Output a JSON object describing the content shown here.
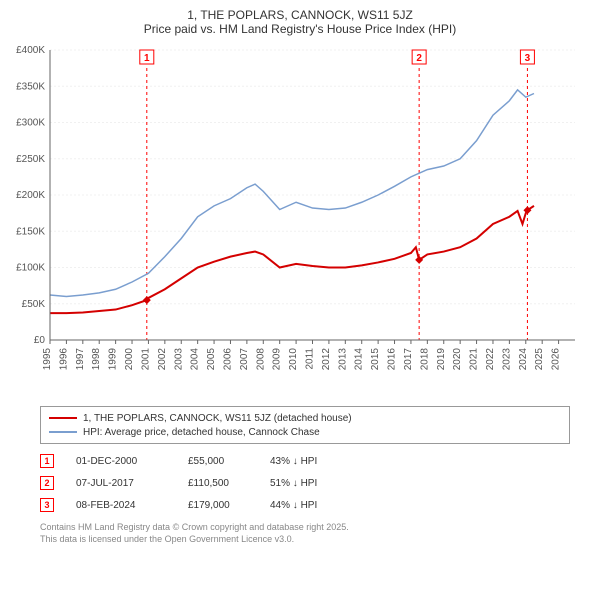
{
  "title": {
    "line1": "1, THE POPLARS, CANNOCK, WS11 5JZ",
    "line2": "Price paid vs. HM Land Registry's House Price Index (HPI)"
  },
  "chart": {
    "type": "line",
    "background_color": "#ffffff",
    "grid_color": "#f0f0f0",
    "axis_color": "#666666",
    "label_color": "#555555",
    "label_fontsize": 10,
    "x": {
      "min": 1995,
      "max": 2027,
      "ticks": [
        1995,
        1996,
        1997,
        1998,
        1999,
        2000,
        2001,
        2002,
        2003,
        2004,
        2005,
        2006,
        2007,
        2008,
        2009,
        2010,
        2011,
        2012,
        2013,
        2014,
        2015,
        2016,
        2017,
        2018,
        2019,
        2020,
        2021,
        2022,
        2023,
        2024,
        2025,
        2026
      ]
    },
    "y": {
      "min": 0,
      "max": 400000,
      "tick_step": 50000,
      "tick_labels": [
        "£0",
        "£50K",
        "£100K",
        "£150K",
        "£200K",
        "£250K",
        "£300K",
        "£350K",
        "£400K"
      ],
      "tick_values": [
        0,
        50000,
        100000,
        150000,
        200000,
        250000,
        300000,
        350000,
        400000
      ]
    },
    "series": [
      {
        "name": "property",
        "color": "#d40000",
        "width": 2,
        "points": [
          [
            1995,
            37000
          ],
          [
            1996,
            37000
          ],
          [
            1997,
            38000
          ],
          [
            1998,
            40000
          ],
          [
            1999,
            42000
          ],
          [
            2000,
            48000
          ],
          [
            2000.9,
            55000
          ],
          [
            2001,
            58000
          ],
          [
            2002,
            70000
          ],
          [
            2003,
            85000
          ],
          [
            2004,
            100000
          ],
          [
            2005,
            108000
          ],
          [
            2006,
            115000
          ],
          [
            2007,
            120000
          ],
          [
            2007.5,
            122000
          ],
          [
            2008,
            118000
          ],
          [
            2009,
            100000
          ],
          [
            2010,
            105000
          ],
          [
            2011,
            102000
          ],
          [
            2012,
            100000
          ],
          [
            2013,
            100000
          ],
          [
            2014,
            103000
          ],
          [
            2015,
            107000
          ],
          [
            2016,
            112000
          ],
          [
            2017,
            120000
          ],
          [
            2017.3,
            128000
          ],
          [
            2017.5,
            110500
          ],
          [
            2018,
            118000
          ],
          [
            2019,
            122000
          ],
          [
            2020,
            128000
          ],
          [
            2021,
            140000
          ],
          [
            2022,
            160000
          ],
          [
            2023,
            170000
          ],
          [
            2023.5,
            178000
          ],
          [
            2023.8,
            160000
          ],
          [
            2024,
            175000
          ],
          [
            2024.1,
            179000
          ],
          [
            2024.5,
            185000
          ]
        ],
        "sale_points": [
          [
            2000.9,
            55000
          ],
          [
            2017.5,
            110500
          ],
          [
            2024.1,
            179000
          ]
        ]
      },
      {
        "name": "hpi",
        "color": "#7a9ecf",
        "width": 1.5,
        "points": [
          [
            1995,
            62000
          ],
          [
            1996,
            60000
          ],
          [
            1997,
            62000
          ],
          [
            1998,
            65000
          ],
          [
            1999,
            70000
          ],
          [
            2000,
            80000
          ],
          [
            2001,
            92000
          ],
          [
            2002,
            115000
          ],
          [
            2003,
            140000
          ],
          [
            2004,
            170000
          ],
          [
            2005,
            185000
          ],
          [
            2006,
            195000
          ],
          [
            2007,
            210000
          ],
          [
            2007.5,
            215000
          ],
          [
            2008,
            205000
          ],
          [
            2009,
            180000
          ],
          [
            2010,
            190000
          ],
          [
            2011,
            182000
          ],
          [
            2012,
            180000
          ],
          [
            2013,
            182000
          ],
          [
            2014,
            190000
          ],
          [
            2015,
            200000
          ],
          [
            2016,
            212000
          ],
          [
            2017,
            225000
          ],
          [
            2018,
            235000
          ],
          [
            2019,
            240000
          ],
          [
            2020,
            250000
          ],
          [
            2021,
            275000
          ],
          [
            2022,
            310000
          ],
          [
            2023,
            330000
          ],
          [
            2023.5,
            345000
          ],
          [
            2024,
            335000
          ],
          [
            2024.5,
            340000
          ]
        ]
      }
    ],
    "markers": [
      {
        "n": "1",
        "x": 2000.9
      },
      {
        "n": "2",
        "x": 2017.5
      },
      {
        "n": "3",
        "x": 2024.1
      }
    ],
    "marker_color": "#ff0000"
  },
  "legend": {
    "items": [
      {
        "color": "#d40000",
        "label": "1, THE POPLARS, CANNOCK, WS11 5JZ (detached house)"
      },
      {
        "color": "#7a9ecf",
        "label": "HPI: Average price, detached house, Cannock Chase"
      }
    ]
  },
  "transactions": [
    {
      "n": "1",
      "date": "01-DEC-2000",
      "price": "£55,000",
      "diff": "43% ↓ HPI"
    },
    {
      "n": "2",
      "date": "07-JUL-2017",
      "price": "£110,500",
      "diff": "51% ↓ HPI"
    },
    {
      "n": "3",
      "date": "08-FEB-2024",
      "price": "£179,000",
      "diff": "44% ↓ HPI"
    }
  ],
  "footer": {
    "line1": "Contains HM Land Registry data © Crown copyright and database right 2025.",
    "line2": "This data is licensed under the Open Government Licence v3.0."
  }
}
